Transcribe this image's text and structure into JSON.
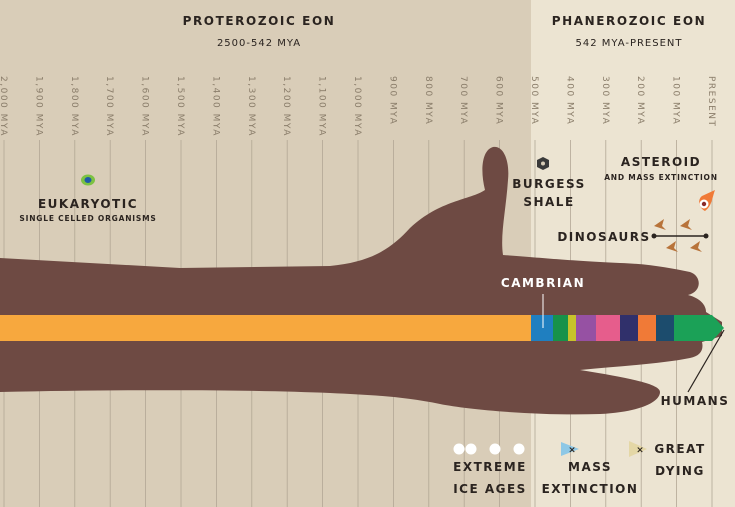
{
  "eons": [
    {
      "title": "PROTEROZOIC EON",
      "subtitle": "2500-542 MYA"
    },
    {
      "title": "PHANEROZOIC EON",
      "subtitle": "542 MYA-PRESENT"
    }
  ],
  "ticks": [
    "2,000 MYA",
    "1,900 MYA",
    "1,800 MYA",
    "1,700 MYA",
    "1,600 MYA",
    "1,500 MYA",
    "1,400 MYA",
    "1,300 MYA",
    "1,200 MYA",
    "1,100 MYA",
    "1,000 MYA",
    "900 MYA",
    "800 MYA",
    "700 MYA",
    "600 MYA",
    "500 MYA",
    "400 MYA",
    "300 MYA",
    "200 MYA",
    "100 MYA",
    "PRESENT"
  ],
  "labels": {
    "eukaryotic": "EUKARYOTIC",
    "eukaryotic_sub": "SINGLE CELLED ORGANISMS",
    "burgess_1": "BURGESS",
    "burgess_2": "SHALE",
    "asteroid": "ASTEROID",
    "asteroid_sub": "AND MASS EXTINCTION",
    "dinosaurs": "DINOSAURS",
    "cambrian": "CAMBRIAN",
    "humans": "HUMANS",
    "ice_1": "EXTREME",
    "ice_2": "ICE AGES",
    "mass_1": "MASS",
    "mass_2": "EXTINCTION",
    "great_1": "GREAT",
    "great_2": "DYING"
  },
  "colors": {
    "background": "#d9cdb8",
    "phanerozoic_background": "#ece4d2",
    "arm": "#6e4a43",
    "proterozoic_bar": "#f7a83e"
  },
  "period_band_colors": [
    "#1f7fc0",
    "#17924a",
    "#c7c22b",
    "#9651a3",
    "#e65d8c",
    "#30306b",
    "#f07a37",
    "#1c4c6d",
    "#1ba157"
  ]
}
